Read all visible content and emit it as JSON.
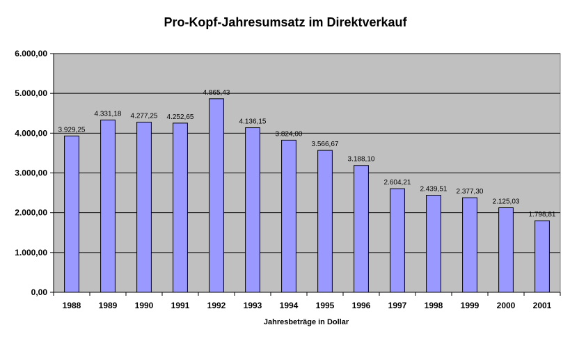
{
  "chart_data": {
    "type": "bar",
    "title": "Pro-Kopf-Jahresumsatz im Direktverkauf",
    "xlabel": "Jahresbeträge in Dollar",
    "ylabel": "",
    "ylim": [
      0,
      6000
    ],
    "y_ticks": [
      0,
      1000,
      2000,
      3000,
      4000,
      5000,
      6000
    ],
    "y_tick_labels": [
      "0,00",
      "1.000,00",
      "2.000,00",
      "3.000,00",
      "4.000,00",
      "5.000,00",
      "6.000,00"
    ],
    "grid": true,
    "legend": "none",
    "categories": [
      "1988",
      "1989",
      "1990",
      "1991",
      "1992",
      "1993",
      "1994",
      "1995",
      "1996",
      "1997",
      "1998",
      "1999",
      "2000",
      "2001"
    ],
    "values": [
      3929.25,
      4331.18,
      4277.25,
      4252.65,
      4865.43,
      4136.15,
      3824.0,
      3566.67,
      3188.1,
      2604.21,
      2439.51,
      2377.3,
      2125.03,
      1798.81
    ],
    "value_labels": [
      "3.929,25",
      "4.331,18",
      "4.277,25",
      "4.252,65",
      "4.865,43",
      "4.136,15",
      "3.824,00",
      "3.566,67",
      "3.188,10",
      "2.604,21",
      "2.439,51",
      "2.377,30",
      "2.125,03",
      "1.798,81"
    ],
    "colors": {
      "bar_fill": "#9999ff",
      "plot_background": "#c0c0c0",
      "gridline": "#000000",
      "axis": "#000000"
    }
  }
}
